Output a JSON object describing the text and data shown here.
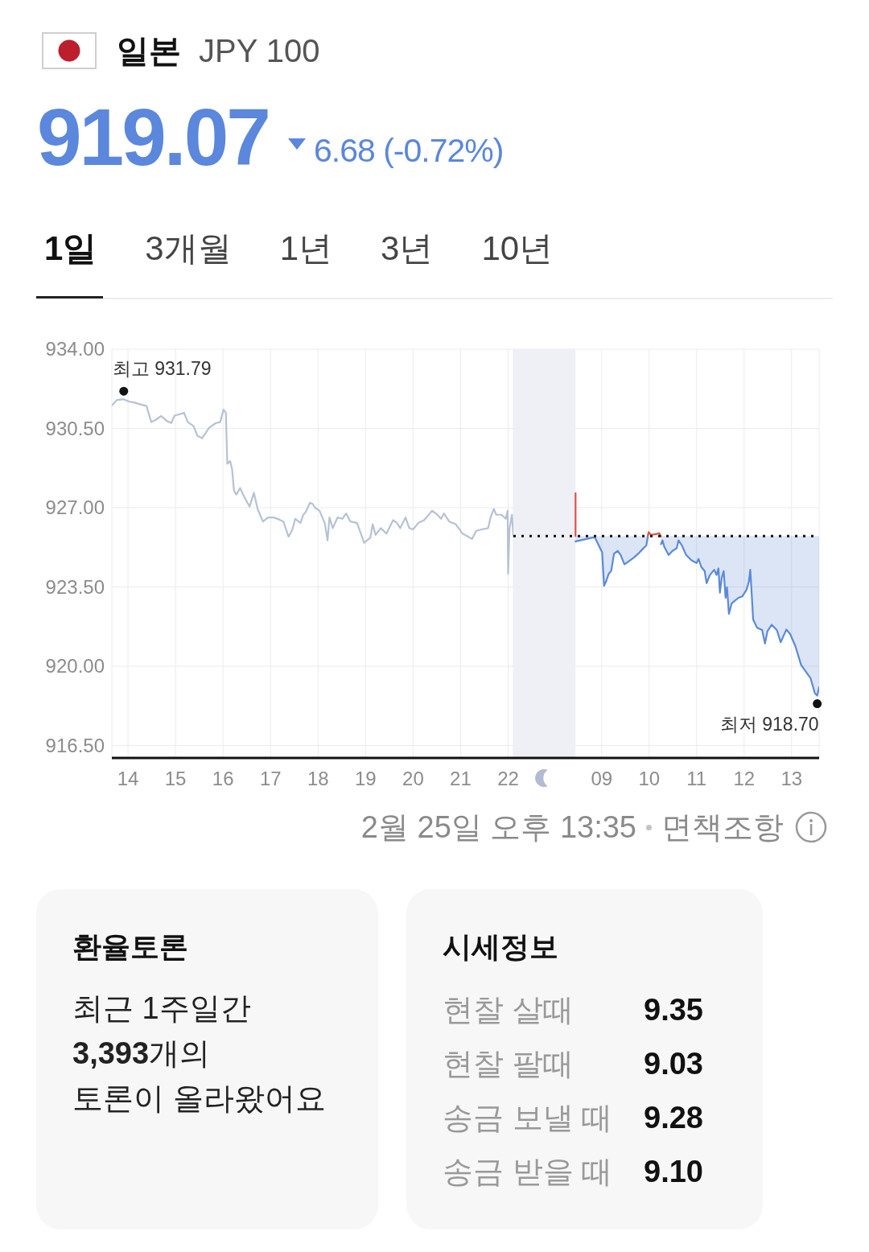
{
  "chart_data": [
    {
      "type": "line",
      "title": "일본",
      "subtitle": "JPY 100",
      "annotations": [
        "919.07",
        "6.68 (-0.72%)",
        "1일",
        "3개월",
        "1년",
        "3년",
        "10년",
        {
          "text": "최고 931.79",
          "x": 13.91,
          "y": 931.79
        },
        "2월 25일 오후 13:35",
        "면책조항"
      ],
      "xlim": [
        13.66,
        22.11
      ],
      "xticks": [
        14,
        15,
        16,
        17,
        18,
        19,
        20,
        21,
        22
      ],
      "ylim": [
        915.95,
        934
      ],
      "yticks": [
        {
          "value": 916.5,
          "label": "916.50"
        },
        {
          "value": 920,
          "label": "920.00"
        },
        {
          "value": 923.5,
          "label": "923.50"
        },
        {
          "value": 927,
          "label": "927.00"
        },
        {
          "value": 930.5,
          "label": "930.50"
        },
        {
          "value": 934,
          "label": "934.00"
        }
      ],
      "grid": true,
      "series": [
        {
          "type": "line",
          "color": "#b7c1d5",
          "x": [
            13.66,
            13.77,
            13.91,
            14.02,
            14.14,
            14.25,
            14.39,
            14.49,
            14.59,
            14.7,
            14.81,
            14.91,
            14.98,
            15.09,
            15.18,
            15.26,
            15.38,
            15.46,
            15.56,
            15.71,
            15.85,
            15.94,
            16.01,
            16.06,
            16.09,
            16.15,
            16.19,
            16.23,
            16.28,
            16.36,
            16.45,
            16.56,
            16.65,
            16.73,
            16.84,
            16.95,
            17.07,
            17.18,
            17.27,
            17.38,
            17.46,
            17.52,
            17.63,
            17.69,
            17.74,
            17.83,
            17.89,
            17.94,
            18.03,
            18.14,
            18.2,
            18.24,
            18.31,
            18.41,
            18.51,
            18.59,
            18.68,
            18.82,
            18.9,
            18.97,
            19.1,
            19.15,
            19.21,
            19.32,
            19.44,
            19.58,
            19.66,
            19.73,
            19.84,
            19.92,
            20,
            20.11,
            20.23,
            20.4,
            20.51,
            20.59,
            20.65,
            20.76,
            20.9,
            21.04,
            21.16,
            21.24,
            21.33,
            21.44,
            21.58,
            21.63,
            21.7,
            21.75,
            21.86,
            21.95,
            21.99,
            22,
            22.03,
            22.08,
            22.11
          ],
          "values": [
            931.52,
            931.76,
            931.79,
            931.69,
            931.64,
            931.57,
            931.49,
            930.78,
            930.89,
            931.05,
            930.84,
            930.74,
            931.07,
            931.13,
            931.19,
            930.78,
            930.6,
            930.18,
            930.07,
            930.54,
            930.74,
            930.78,
            931.33,
            931.19,
            928.94,
            929.06,
            928.71,
            927.76,
            927.58,
            927.87,
            927.46,
            927.05,
            927.66,
            926.93,
            926.39,
            926.57,
            926.57,
            926.48,
            926.39,
            925.72,
            926.04,
            926.51,
            926.33,
            926.69,
            926.81,
            927.22,
            927.16,
            926.99,
            926.87,
            926.33,
            925.56,
            926.57,
            926.1,
            926.57,
            926.51,
            926.75,
            926.39,
            926.33,
            925.86,
            925.45,
            925.68,
            926.27,
            925.8,
            926.1,
            925.86,
            926.45,
            926.33,
            926.1,
            926.57,
            926.1,
            926.04,
            926.33,
            926.45,
            926.87,
            926.69,
            926.51,
            926.75,
            926.39,
            926.27,
            925.86,
            925.72,
            925.62,
            925.98,
            926.04,
            926.1,
            926.57,
            926.95,
            926.69,
            926.69,
            926.51,
            926.87,
            924.09,
            926.1,
            926.69,
            925.75
          ]
        }
      ]
    },
    {
      "type": "line",
      "tick_labels": "x",
      "annotations": [
        {
          "text": "최저 918.70",
          "x": 13.54,
          "y": 918.7
        }
      ],
      "xlim": [
        7.14,
        13.58
      ],
      "xticks": [
        {
          "value": 9,
          "label": "09"
        },
        10,
        11,
        12,
        13
      ],
      "ylim": [
        915.95,
        934
      ],
      "yticks": [
        916.5,
        920,
        923.5,
        927,
        930.5,
        934
      ],
      "grid": true,
      "bands": [
        {
          "axis": "x",
          "from": 7.14,
          "to": 8.45,
          "color": "#eef0f5"
        }
      ],
      "ref_lines": [
        {
          "axis": "y",
          "value": 925.75,
          "color": "#111111",
          "line_style": "dotted"
        }
      ],
      "series": [
        {
          "type": "line",
          "color": "#5b8ad8",
          "x": [
            8.45,
            8.81,
            8.86,
            9.01,
            9.05,
            9.09,
            9.15,
            9.2,
            9.26,
            9.34,
            9.4,
            9.48,
            9.6,
            9.68,
            9.77,
            9.88,
            9.94,
            9.97,
            10.1,
            10.25,
            10.28,
            10.32,
            10.41,
            10.49,
            10.58,
            10.62,
            10.69,
            10.78,
            10.89,
            11,
            11.04,
            11.1,
            11.17,
            11.21,
            11.28,
            11.37,
            11.42,
            11.46,
            11.49,
            11.53,
            11.57,
            11.61,
            11.64,
            11.68,
            11.74,
            11.81,
            11.88,
            11.96,
            12.05,
            12.1,
            12.13,
            12.16,
            12.19,
            12.27,
            12.38,
            12.44,
            12.49,
            12.58,
            12.69,
            12.77,
            12.89,
            12.97,
            13.08,
            13.2,
            13.32,
            13.4,
            13.49,
            13.54,
            13.58
          ],
          "values": [
            925.51,
            925.68,
            925.68,
            925.03,
            923.55,
            923.73,
            924.09,
            924.2,
            924.97,
            925.09,
            924.91,
            924.5,
            924.68,
            924.8,
            924.97,
            925.21,
            925.33,
            925.68,
            null,
            925.39,
            925.56,
            925.27,
            924.91,
            925.09,
            925.21,
            925.56,
            925.33,
            924.91,
            924.68,
            924.56,
            924.74,
            924.38,
            924.2,
            923.67,
            924.03,
            924.26,
            924.03,
            924.32,
            923.25,
            923.91,
            924.2,
            923.02,
            923.49,
            922.31,
            922.78,
            922.9,
            923.02,
            923.08,
            923.37,
            923.73,
            924.26,
            923.2,
            922.07,
            921.71,
            921.6,
            921,
            921.54,
            921.83,
            921.6,
            921.06,
            921.62,
            921.42,
            920.89,
            920.06,
            919.7,
            919.47,
            918.81,
            918.7,
            919.07
          ],
          "lower": [
            925.51,
            925.68,
            925.68,
            925.03,
            923.55,
            923.73,
            924.09,
            924.2,
            924.97,
            925.09,
            924.91,
            924.5,
            924.68,
            924.8,
            924.97,
            925.21,
            925.33,
            925.68,
            null,
            925.39,
            925.56,
            925.27,
            924.91,
            925.09,
            925.21,
            925.56,
            925.33,
            924.91,
            924.68,
            924.56,
            924.74,
            924.38,
            924.2,
            923.67,
            924.03,
            924.26,
            924.03,
            924.32,
            923.25,
            923.91,
            924.2,
            923.02,
            923.49,
            922.31,
            922.78,
            922.9,
            923.02,
            923.08,
            923.37,
            923.73,
            924.26,
            923.2,
            922.07,
            921.71,
            921.6,
            921,
            921.54,
            921.83,
            921.6,
            921.06,
            921.62,
            921.42,
            920.89,
            920.06,
            919.7,
            919.47,
            918.81,
            918.7,
            919.07
          ],
          "upper": [
            925.75,
            925.75,
            925.75,
            925.75,
            925.75,
            925.75,
            925.75,
            925.75,
            925.75,
            925.75,
            925.75,
            925.75,
            925.75,
            925.75,
            925.75,
            925.75,
            925.75,
            925.75,
            null,
            925.75,
            925.75,
            925.75,
            925.75,
            925.75,
            925.75,
            925.75,
            925.75,
            925.75,
            925.75,
            925.75,
            925.75,
            925.75,
            925.75,
            925.75,
            925.75,
            925.75,
            925.75,
            925.75,
            925.75,
            925.75,
            925.75,
            925.75,
            925.75,
            925.75,
            925.75,
            925.75,
            925.75,
            925.75,
            925.75,
            925.75,
            925.75,
            925.75,
            925.75,
            925.75,
            925.75,
            925.75,
            925.75,
            925.75,
            925.75,
            925.75,
            925.75,
            925.75,
            925.75,
            925.75,
            925.75,
            925.75,
            925.75,
            925.75,
            925.75
          ]
        },
        {
          "type": "line",
          "color": "#e0504a",
          "x": [
            8.45,
            8.45,
            9.5,
            9.97,
            9.99,
            10.04,
            10.16,
            10.21,
            10.25
          ],
          "values": [
            927.64,
            925.75,
            null,
            925.75,
            925.92,
            925.8,
            925.84,
            925.88,
            925.74
          ]
        }
      ]
    },
    {
      "type": "other",
      "title": "환율토론",
      "annotations": [
        "최근 1주일간",
        "3,393개의",
        "토론이 올라왔어요"
      ]
    },
    {
      "type": "other",
      "title": "시세정보",
      "categories": [
        "현찰 살때",
        "현찰 팔때",
        "송금 보낼 때",
        "송금 받을 때"
      ],
      "annotations": [
        "9.35",
        "9.03",
        "9.28",
        "9.10"
      ]
    }
  ]
}
